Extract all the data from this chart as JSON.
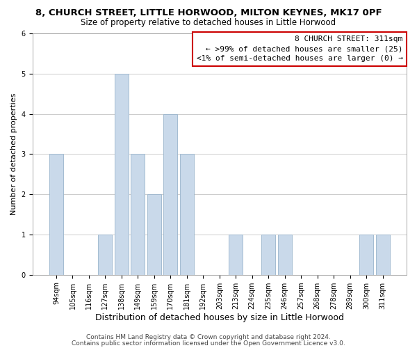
{
  "title": "8, CHURCH STREET, LITTLE HORWOOD, MILTON KEYNES, MK17 0PF",
  "subtitle": "Size of property relative to detached houses in Little Horwood",
  "xlabel": "Distribution of detached houses by size in Little Horwood",
  "ylabel": "Number of detached properties",
  "xlabels": [
    "94sqm",
    "105sqm",
    "116sqm",
    "127sqm",
    "138sqm",
    "149sqm",
    "159sqm",
    "170sqm",
    "181sqm",
    "192sqm",
    "203sqm",
    "213sqm",
    "224sqm",
    "235sqm",
    "246sqm",
    "257sqm",
    "268sqm",
    "278sqm",
    "289sqm",
    "300sqm",
    "311sqm"
  ],
  "bar_heights": [
    3,
    0,
    0,
    1,
    5,
    3,
    2,
    4,
    3,
    0,
    0,
    1,
    0,
    1,
    1,
    0,
    0,
    0,
    0,
    1,
    1
  ],
  "bar_color": "#c9d9ea",
  "bar_edge_color": "#9ab5cc",
  "ylim": [
    0,
    6
  ],
  "yticks": [
    0,
    1,
    2,
    3,
    4,
    5,
    6
  ],
  "grid_color": "#cccccc",
  "annotation_title": "8 CHURCH STREET: 311sqm",
  "annotation_line1": "← >99% of detached houses are smaller (25)",
  "annotation_line2": "<1% of semi-detached houses are larger (0) →",
  "annotation_box_color": "#cc0000",
  "footer1": "Contains HM Land Registry data © Crown copyright and database right 2024.",
  "footer2": "Contains public sector information licensed under the Open Government Licence v3.0.",
  "title_fontsize": 9.5,
  "subtitle_fontsize": 8.5,
  "xlabel_fontsize": 9,
  "ylabel_fontsize": 8,
  "tick_fontsize": 7,
  "annotation_fontsize": 8,
  "footer_fontsize": 6.5
}
